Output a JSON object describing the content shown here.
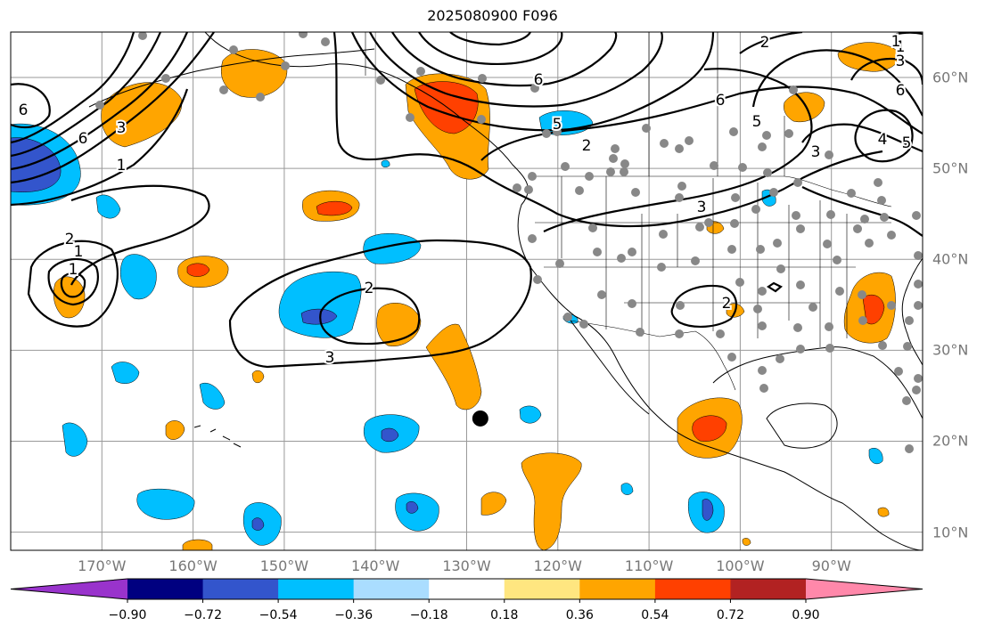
{
  "title": "2025080900 F096",
  "lon_labels": [
    {
      "text": "170°W",
      "lon": -170
    },
    {
      "text": "160°W",
      "lon": -160
    },
    {
      "text": "150°W",
      "lon": -150
    },
    {
      "text": "140°W",
      "lon": -140
    },
    {
      "text": "130°W",
      "lon": -130
    },
    {
      "text": "120°W",
      "lon": -120
    },
    {
      "text": "110°W",
      "lon": -110
    },
    {
      "text": "100°W",
      "lon": -100
    },
    {
      "text": "90°W",
      "lon": -90
    }
  ],
  "lat_labels": [
    {
      "text": "60°N",
      "lat": 60
    },
    {
      "text": "50°N",
      "lat": 50
    },
    {
      "text": "40°N",
      "lat": 40
    },
    {
      "text": "30°N",
      "lat": 30
    },
    {
      "text": "20°N",
      "lat": 20
    },
    {
      "text": "10°N",
      "lat": 10
    }
  ],
  "colorbar": {
    "colors": [
      "#9933cc",
      "#000080",
      "#3355cc",
      "#00bfff",
      "#aaddff",
      "#ffffff",
      "#ffe680",
      "#ffa500",
      "#ff4000",
      "#b22222",
      "#ff88aa"
    ],
    "tick_labels": [
      "−0.90",
      "−0.72",
      "−0.54",
      "−0.36",
      "−0.18",
      "0.18",
      "0.36",
      "0.54",
      "0.72",
      "0.90"
    ]
  },
  "contour_labels": [
    "6",
    "6",
    "6",
    "5",
    "2",
    "1",
    "3",
    "2",
    "1",
    "1",
    "2",
    "3",
    "2",
    "1",
    "3",
    "6",
    "5",
    "3",
    "4",
    "5",
    "6",
    "3",
    "2",
    "1"
  ],
  "marker": {
    "lon": -128.5,
    "lat": 22.5
  }
}
